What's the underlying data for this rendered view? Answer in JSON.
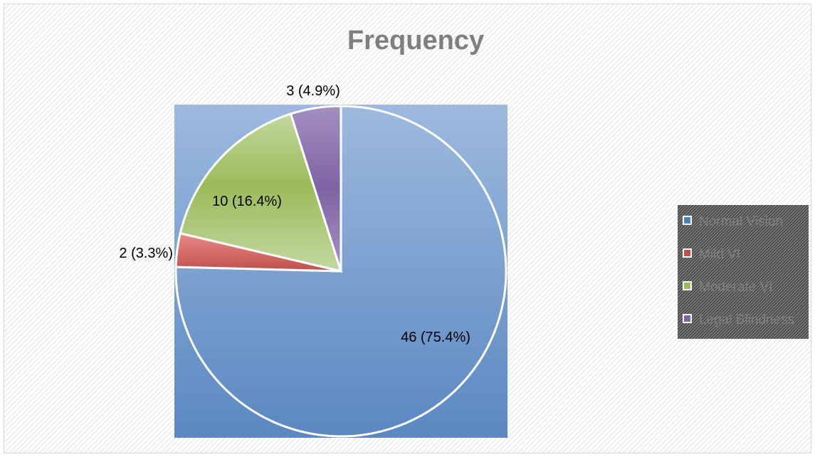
{
  "chart_data": {
    "type": "pie",
    "title": "Frequency",
    "categories": [
      "Normal Vision",
      "Mild VI",
      "Moderate VI",
      "Legal Blindness"
    ],
    "values": [
      46,
      2,
      10,
      3
    ],
    "data_labels": [
      "46 (75.4%)",
      "2 (3.3%)",
      "10 (16.4%)",
      "3 (4.9%)"
    ],
    "colors": [
      "#7a9fd1",
      "#c0504d",
      "#9bbb59",
      "#8064a2"
    ],
    "legend_position": "right"
  }
}
